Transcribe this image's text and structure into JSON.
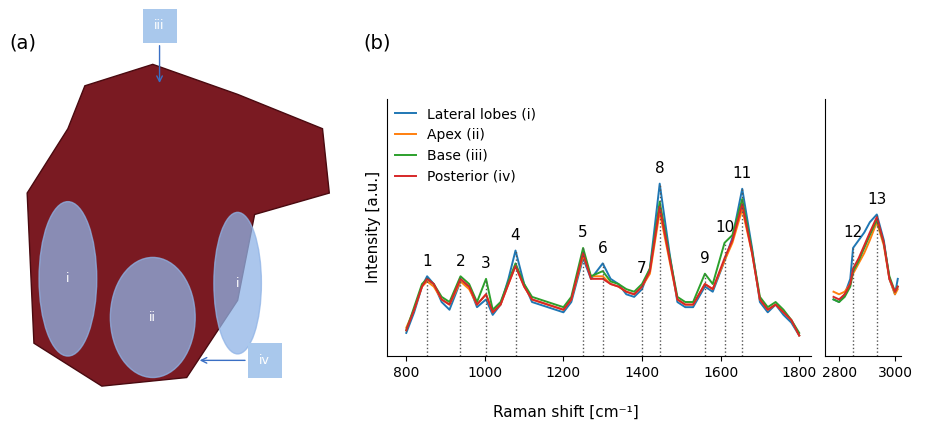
{
  "panel_labels": [
    "(a)",
    "(b)"
  ],
  "photo": {
    "regions": [
      {
        "label": "i"
      },
      {
        "label": "ii"
      },
      {
        "label": "i"
      }
    ],
    "callouts": [
      {
        "label": "iii"
      },
      {
        "label": "iv"
      }
    ]
  },
  "chart_data": [
    {
      "type": "line",
      "xlabel": "Raman shift [cm⁻¹]",
      "ylabel": "Intensity [a.u.]",
      "xlim": [
        750,
        1830
      ],
      "xticks": [
        800,
        1000,
        1200,
        1400,
        1600,
        1800
      ],
      "ylim": [
        0,
        100
      ],
      "yticks": [],
      "tick_labels": "x",
      "legend": "upper left",
      "x": [
        800,
        820,
        840,
        853,
        870,
        890,
        910,
        938,
        960,
        980,
        1003,
        1020,
        1040,
        1060,
        1078,
        1100,
        1120,
        1140,
        1160,
        1180,
        1200,
        1220,
        1250,
        1270,
        1300,
        1320,
        1340,
        1360,
        1380,
        1400,
        1420,
        1445,
        1470,
        1490,
        1510,
        1530,
        1560,
        1580,
        1610,
        1630,
        1655,
        1680,
        1700,
        1720,
        1740,
        1760,
        1780,
        1800
      ],
      "series": [
        {
          "name": "Lateral lobes (i)",
          "color": "#1f77b4",
          "values": [
            9,
            17,
            27,
            31,
            28,
            21,
            18,
            29,
            27,
            19,
            22,
            16,
            20,
            30,
            41,
            28,
            21,
            20,
            19,
            18,
            17,
            21,
            38,
            30,
            36,
            30,
            28,
            24,
            23,
            26,
            34,
            67,
            40,
            21,
            19,
            19,
            27,
            25,
            37,
            46,
            65,
            42,
            21,
            17,
            20,
            16,
            13,
            8
          ]
        },
        {
          "name": "Apex (ii)",
          "color": "#ff7f0e",
          "values": [
            11,
            18,
            27,
            29,
            27,
            22,
            20,
            29,
            26,
            20,
            24,
            17,
            20,
            28,
            35,
            27,
            22,
            21,
            20,
            19,
            18,
            22,
            39,
            31,
            31,
            28,
            27,
            25,
            24,
            27,
            32,
            56,
            37,
            22,
            20,
            20,
            28,
            26,
            37,
            44,
            57,
            40,
            22,
            18,
            20,
            17,
            14,
            8
          ]
        },
        {
          "name": "Base (iii)",
          "color": "#2ca02c",
          "values": [
            10,
            19,
            28,
            30,
            28,
            23,
            21,
            31,
            28,
            21,
            30,
            18,
            21,
            29,
            36,
            28,
            23,
            22,
            21,
            20,
            19,
            23,
            42,
            31,
            33,
            29,
            28,
            26,
            25,
            28,
            34,
            60,
            39,
            23,
            21,
            21,
            32,
            28,
            44,
            47,
            61,
            41,
            23,
            19,
            21,
            18,
            14,
            9
          ]
        },
        {
          "name": "Posterior (iv)",
          "color": "#d62728",
          "values": [
            10,
            18,
            27,
            30,
            28,
            22,
            20,
            30,
            27,
            20,
            24,
            17,
            20,
            28,
            35,
            27,
            22,
            21,
            20,
            19,
            18,
            22,
            40,
            30,
            30,
            28,
            27,
            25,
            24,
            27,
            33,
            58,
            38,
            22,
            20,
            20,
            28,
            26,
            38,
            45,
            59,
            40,
            22,
            18,
            20,
            17,
            14,
            8
          ]
        }
      ],
      "annotations": [
        {
          "text": "1",
          "x": 853
        },
        {
          "text": "2",
          "x": 938
        },
        {
          "text": "3",
          "x": 1003
        },
        {
          "text": "4",
          "x": 1078
        },
        {
          "text": "5",
          "x": 1250
        },
        {
          "text": "6",
          "x": 1300
        },
        {
          "text": "7",
          "x": 1400
        },
        {
          "text": "8",
          "x": 1445
        },
        {
          "text": "9",
          "x": 1560
        },
        {
          "text": "10",
          "x": 1610
        },
        {
          "text": "11",
          "x": 1655
        }
      ]
    },
    {
      "type": "line",
      "xlim": [
        2750,
        3020
      ],
      "xticks": [
        2800,
        3000
      ],
      "ylim": [
        0,
        100
      ],
      "yticks": [],
      "tick_labels": "x",
      "x": [
        2780,
        2800,
        2820,
        2840,
        2850,
        2870,
        2890,
        2910,
        2935,
        2960,
        2980,
        3000,
        3010
      ],
      "series": [
        {
          "color": "#1f77b4",
          "values": [
            22,
            21,
            24,
            30,
            42,
            45,
            48,
            52,
            55,
            45,
            30,
            24,
            30
          ]
        },
        {
          "color": "#ff7f0e",
          "values": [
            25,
            24,
            25,
            28,
            32,
            36,
            40,
            45,
            52,
            43,
            30,
            24,
            26
          ]
        },
        {
          "color": "#2ca02c",
          "values": [
            22,
            21,
            23,
            27,
            33,
            37,
            42,
            47,
            53,
            44,
            31,
            25,
            27
          ]
        },
        {
          "color": "#d62728",
          "values": [
            23,
            22,
            24,
            28,
            34,
            38,
            43,
            48,
            54,
            44,
            30,
            25,
            27
          ]
        }
      ],
      "annotations": [
        {
          "text": "12",
          "x": 2850
        },
        {
          "text": "13",
          "x": 2935
        }
      ]
    }
  ]
}
